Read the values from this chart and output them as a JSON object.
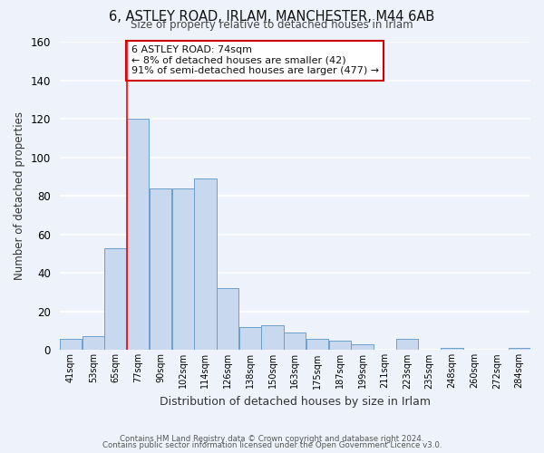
{
  "title": "6, ASTLEY ROAD, IRLAM, MANCHESTER, M44 6AB",
  "subtitle": "Size of property relative to detached houses in Irlam",
  "xlabel": "Distribution of detached houses by size in Irlam",
  "ylabel": "Number of detached properties",
  "bar_color": "#c8d8ee",
  "bar_edge_color": "#6aa0cc",
  "background_color": "#eef2fa",
  "grid_color": "#ffffff",
  "bin_labels": [
    "41sqm",
    "53sqm",
    "65sqm",
    "77sqm",
    "90sqm",
    "102sqm",
    "114sqm",
    "126sqm",
    "138sqm",
    "150sqm",
    "163sqm",
    "175sqm",
    "187sqm",
    "199sqm",
    "211sqm",
    "223sqm",
    "235sqm",
    "248sqm",
    "260sqm",
    "272sqm",
    "284sqm"
  ],
  "bar_heights": [
    6,
    7,
    53,
    120,
    84,
    84,
    89,
    32,
    12,
    13,
    9,
    6,
    5,
    3,
    0,
    6,
    0,
    1,
    0,
    0,
    1
  ],
  "ylim": [
    0,
    160
  ],
  "yticks": [
    0,
    20,
    40,
    60,
    80,
    100,
    120,
    140,
    160
  ],
  "property_bar_index": 3,
  "annotation_text": "6 ASTLEY ROAD: 74sqm\n← 8% of detached houses are smaller (42)\n91% of semi-detached houses are larger (477) →",
  "annotation_box_color": "#ffffff",
  "annotation_box_edge_color": "#cc0000",
  "footer1": "Contains HM Land Registry data © Crown copyright and database right 2024.",
  "footer2": "Contains public sector information licensed under the Open Government Licence v3.0."
}
